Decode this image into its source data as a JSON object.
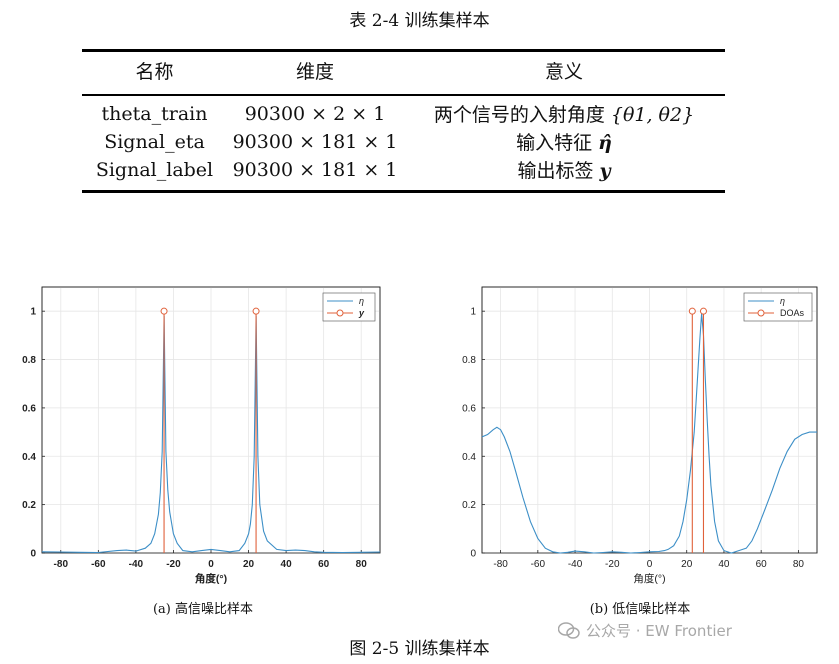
{
  "table": {
    "caption": "表 2-4 训练集样本",
    "headers": [
      "名称",
      "维度",
      "意义"
    ],
    "rows": [
      {
        "name": "theta_train",
        "dims": "90300 × 2 × 1",
        "meaning_text": "两个信号的入射角度 ",
        "meaning_math": "{θ1, θ2}"
      },
      {
        "name": "Signal_eta",
        "dims": "90300 × 181 × 1",
        "meaning_text": "输入特征 ",
        "meaning_math": "η̂"
      },
      {
        "name": "Signal_label",
        "dims": "90300 × 181 × 1",
        "meaning_text": "输出标签 ",
        "meaning_math": "y"
      }
    ]
  },
  "figure": {
    "caption": "图 2-5 训练集样本",
    "sub_captions": [
      "(a) 高信噪比样本",
      "(b) 低信噪比样本"
    ]
  },
  "watermark": {
    "text": "公众号 · EW Frontier"
  },
  "colors": {
    "eta_line": "#3d8fc7",
    "stem": "#e0613a"
  },
  "chart_data": [
    {
      "type": "line",
      "xlabel": "角度(°)",
      "ylabel": "",
      "xlim": [
        -90,
        90
      ],
      "ylim": [
        0,
        1.1
      ],
      "x_ticks": [
        -80,
        -60,
        -40,
        -20,
        0,
        20,
        40,
        60,
        80
      ],
      "y_ticks": [
        0,
        0.2,
        0.4,
        0.6,
        0.8,
        1
      ],
      "grid": true,
      "legend_position": "top-right",
      "series": [
        {
          "name": "η",
          "kind": "line",
          "x": [
            -90,
            -80,
            -70,
            -60,
            -50,
            -45,
            -40,
            -35,
            -32,
            -30,
            -28,
            -27,
            -26,
            -25,
            -24,
            -23,
            -22,
            -20,
            -18,
            -15,
            -10,
            -5,
            0,
            5,
            10,
            15,
            18,
            20,
            21,
            22,
            23,
            24,
            25,
            26,
            28,
            30,
            35,
            40,
            45,
            50,
            55,
            60,
            70,
            80,
            90
          ],
          "y": [
            0.005,
            0.004,
            0.003,
            0.002,
            0.01,
            0.012,
            0.008,
            0.02,
            0.04,
            0.08,
            0.16,
            0.25,
            0.42,
            0.98,
            0.42,
            0.26,
            0.17,
            0.08,
            0.04,
            0.01,
            0.005,
            0.01,
            0.015,
            0.01,
            0.005,
            0.01,
            0.04,
            0.08,
            0.12,
            0.2,
            0.4,
            0.98,
            0.4,
            0.2,
            0.09,
            0.05,
            0.015,
            0.01,
            0.012,
            0.01,
            0.005,
            0.003,
            0.002,
            0.003,
            0.004
          ]
        },
        {
          "name": "y",
          "kind": "stem",
          "x": [
            -25,
            24
          ],
          "y": [
            1,
            1
          ]
        }
      ]
    },
    {
      "type": "line",
      "xlabel": "角度(°)",
      "ylabel": "",
      "xlim": [
        -90,
        90
      ],
      "ylim": [
        0,
        1.1
      ],
      "x_ticks": [
        -80,
        -60,
        -40,
        -20,
        0,
        20,
        40,
        60,
        80
      ],
      "y_ticks": [
        0,
        0.2,
        0.4,
        0.6,
        0.8,
        1
      ],
      "grid": true,
      "legend_position": "top-right",
      "series": [
        {
          "name": "η",
          "kind": "line",
          "x": [
            -90,
            -87,
            -84,
            -82,
            -80,
            -78,
            -75,
            -72,
            -68,
            -64,
            -60,
            -56,
            -52,
            -48,
            -44,
            -40,
            -35,
            -30,
            -25,
            -20,
            -15,
            -10,
            -5,
            0,
            5,
            8,
            10,
            13,
            16,
            18,
            20,
            22,
            24,
            25,
            26,
            27,
            28,
            29,
            30,
            31,
            32,
            33,
            35,
            37,
            40,
            44,
            48,
            50,
            52,
            55,
            58,
            62,
            66,
            70,
            74,
            78,
            82,
            86,
            90
          ],
          "y": [
            0.48,
            0.49,
            0.51,
            0.52,
            0.51,
            0.48,
            0.42,
            0.34,
            0.23,
            0.13,
            0.06,
            0.02,
            0.005,
            0.0,
            0.003,
            0.008,
            0.005,
            0.0,
            0.002,
            0.005,
            0.003,
            0.0,
            0.002,
            0.005,
            0.006,
            0.01,
            0.015,
            0.03,
            0.07,
            0.13,
            0.22,
            0.34,
            0.5,
            0.62,
            0.75,
            0.88,
            0.99,
            0.9,
            0.72,
            0.55,
            0.4,
            0.28,
            0.13,
            0.05,
            0.01,
            0.0,
            0.01,
            0.015,
            0.02,
            0.05,
            0.1,
            0.18,
            0.26,
            0.35,
            0.42,
            0.47,
            0.49,
            0.5,
            0.5
          ]
        },
        {
          "name": "DOAs",
          "kind": "stem",
          "x": [
            23,
            29
          ],
          "y": [
            1,
            1
          ]
        }
      ]
    }
  ]
}
